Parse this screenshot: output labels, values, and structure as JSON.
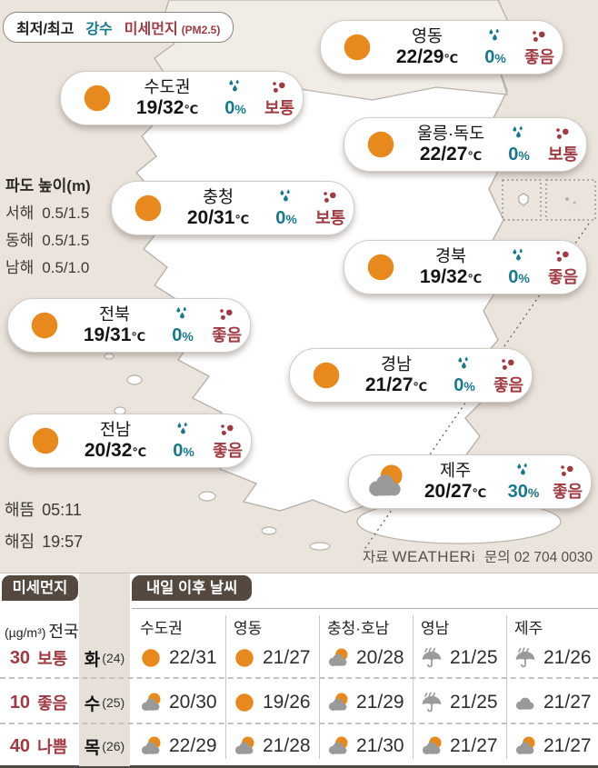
{
  "colors": {
    "rain_accent": "#17798c",
    "dust_accent": "#a03b42",
    "sun": "#e8891d",
    "header_bg": "#55483f",
    "sea": "#eae4dd"
  },
  "legend": {
    "temp_label": "최저/최고",
    "rain_label": "강수",
    "dust_label": "미세먼지",
    "dust_unit": "(PM2.5)"
  },
  "waves": {
    "title": "파도 높이(m)",
    "items": [
      {
        "label": "서해",
        "value": "0.5/1.5"
      },
      {
        "label": "동해",
        "value": "0.5/1.5"
      },
      {
        "label": "남해",
        "value": "0.5/1.0"
      }
    ]
  },
  "sun_times": [
    {
      "label": "해뜸",
      "value": "05:11"
    },
    {
      "label": "해짐",
      "value": "19:57"
    }
  ],
  "source": {
    "label": "자료",
    "provider": "WEATHERi",
    "contact": "문의 02 704 0030"
  },
  "temp_unit": "℃",
  "rain_unit": "%",
  "regions": [
    {
      "name": "수도권",
      "icon": "sun",
      "temp": "19/32",
      "rain": "0",
      "dust": "보통"
    },
    {
      "name": "영동",
      "icon": "sun",
      "temp": "22/29",
      "rain": "0",
      "dust": "좋음"
    },
    {
      "name": "울릉·독도",
      "icon": "sun",
      "temp": "22/27",
      "rain": "0",
      "dust": "보통"
    },
    {
      "name": "충청",
      "icon": "sun",
      "temp": "20/31",
      "rain": "0",
      "dust": "보통"
    },
    {
      "name": "경북",
      "icon": "sun",
      "temp": "19/32",
      "rain": "0",
      "dust": "좋음"
    },
    {
      "name": "전북",
      "icon": "sun",
      "temp": "19/31",
      "rain": "0",
      "dust": "좋음"
    },
    {
      "name": "경남",
      "icon": "sun",
      "temp": "21/27",
      "rain": "0",
      "dust": "좋음"
    },
    {
      "name": "전남",
      "icon": "sun",
      "temp": "20/32",
      "rain": "0",
      "dust": "좋음"
    },
    {
      "name": "제주",
      "icon": "sun-cloud",
      "temp": "20/27",
      "rain": "30",
      "dust": "좋음"
    }
  ],
  "dust_panel": {
    "title": "미세먼지",
    "unit": "(µg/m³)",
    "scope": "전국",
    "rows": [
      {
        "value": "30",
        "status": "보통"
      },
      {
        "value": "10",
        "status": "좋음"
      },
      {
        "value": "40",
        "status": "나쁨"
      }
    ]
  },
  "forecast": {
    "title": "내일 이후 날씨",
    "columns": [
      "수도권",
      "영동",
      "충청·호남",
      "영남",
      "제주"
    ],
    "days": [
      {
        "label": "화",
        "date": "(24)"
      },
      {
        "label": "수",
        "date": "(25)"
      },
      {
        "label": "목",
        "date": "(26)"
      }
    ],
    "cells": [
      [
        {
          "icon": "sun",
          "temp": "22/31"
        },
        {
          "icon": "sun",
          "temp": "21/27"
        },
        {
          "icon": "sun-cloud",
          "temp": "20/28"
        },
        {
          "icon": "rain",
          "temp": "21/25"
        },
        {
          "icon": "rain",
          "temp": "21/26"
        }
      ],
      [
        {
          "icon": "sun-cloud",
          "temp": "20/30"
        },
        {
          "icon": "sun",
          "temp": "19/26"
        },
        {
          "icon": "sun-cloud",
          "temp": "21/29"
        },
        {
          "icon": "rain",
          "temp": "21/25"
        },
        {
          "icon": "cloud",
          "temp": "21/27"
        }
      ],
      [
        {
          "icon": "sun-cloud",
          "temp": "22/29"
        },
        {
          "icon": "sun-cloud",
          "temp": "21/28"
        },
        {
          "icon": "sun-cloud",
          "temp": "21/30"
        },
        {
          "icon": "sun-cloud",
          "temp": "21/27"
        },
        {
          "icon": "sun-cloud",
          "temp": "21/27"
        }
      ]
    ]
  }
}
